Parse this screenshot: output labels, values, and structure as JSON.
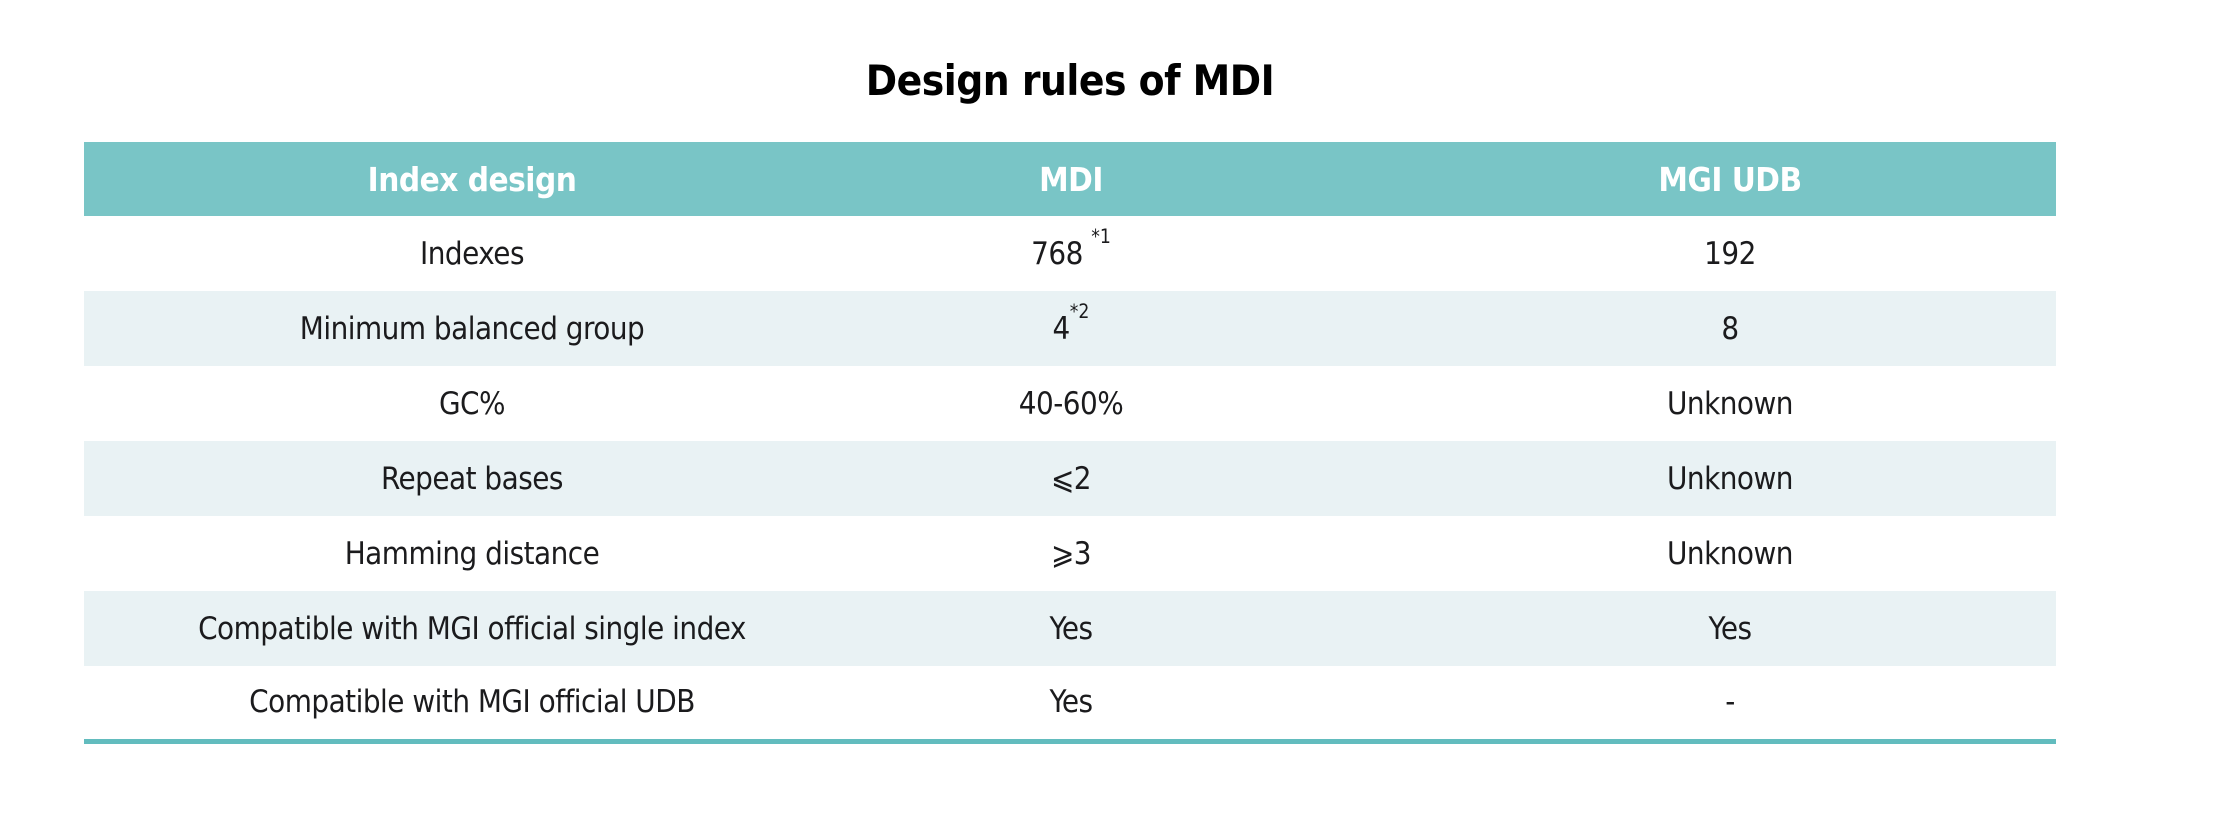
{
  "title": "Design rules of MDI",
  "colors": {
    "header_bg": "#79c5c6",
    "header_text": "#ffffff",
    "shaded_row_bg": "#e9f2f4",
    "bottom_border": "#62bcbe",
    "body_text": "#1b1b1d",
    "title_text": "#000000",
    "page_bg": "#ffffff"
  },
  "table": {
    "headers": [
      "Index design",
      "MDI",
      "MGI UDB"
    ],
    "rows": [
      {
        "label": "Indexes",
        "mdi": {
          "base": "768 ",
          "sup": "*1"
        },
        "udb": "192"
      },
      {
        "label": "Minimum balanced group",
        "mdi": {
          "base": "4",
          "sup": "*2"
        },
        "udb": "8"
      },
      {
        "label": "GC%",
        "mdi": {
          "base": "40-60%"
        },
        "udb": "Unknown"
      },
      {
        "label": "Repeat bases",
        "mdi": {
          "base": "⩽2"
        },
        "udb": "Unknown"
      },
      {
        "label": "Hamming distance",
        "mdi": {
          "base": "⩾3"
        },
        "udb": "Unknown"
      },
      {
        "label": "Compatible with MGI official single index",
        "mdi": {
          "base": "Yes"
        },
        "udb": "Yes"
      },
      {
        "label": "Compatible with MGI official UDB",
        "mdi": {
          "base": "Yes"
        },
        "udb": "-"
      }
    ]
  }
}
